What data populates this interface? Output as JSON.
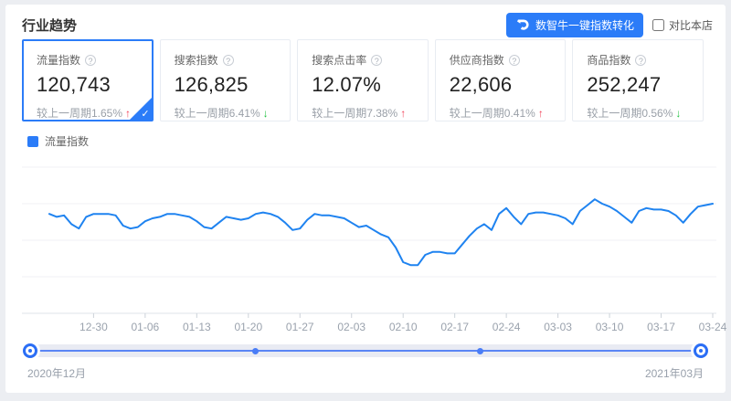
{
  "header": {
    "title": "行业趋势",
    "convert_button_label": "数智牛一键指数转化",
    "compare_checkbox_label": "对比本店"
  },
  "icons": {
    "help_glyph": "?",
    "check_glyph": "✓",
    "up_arrow": "↑",
    "down_arrow": "↓"
  },
  "colors": {
    "accent": "#2b7cf8",
    "line": "#1f83f0",
    "up_red": "#f23c53",
    "down_green": "#23c343"
  },
  "cards": [
    {
      "label": "流量指数",
      "value": "120,743",
      "change_text": "较上一周期1.65%",
      "arrow": "↑",
      "arrow_style": "color:#f23c53",
      "selected": "true"
    },
    {
      "label": "搜索指数",
      "value": "126,825",
      "change_text": "较上一周期6.41%",
      "arrow": "↓",
      "arrow_style": "color:#23c343",
      "selected": "false"
    },
    {
      "label": "搜索点击率",
      "value": "12.07%",
      "change_text": "较上一周期7.38%",
      "arrow": "↑",
      "arrow_style": "color:#f23c53",
      "selected": "false"
    },
    {
      "label": "供应商指数",
      "value": "22,606",
      "change_text": "较上一周期0.41%",
      "arrow": "↑",
      "arrow_style": "color:#f23c53",
      "selected": "false"
    },
    {
      "label": "商品指数",
      "value": "252,247",
      "change_text": "较上一周期0.56%",
      "arrow": "↓",
      "arrow_style": "color:#23c343",
      "selected": "false"
    }
  ],
  "legend": {
    "label": "流量指数",
    "color": "#2b7cf8"
  },
  "slider": {
    "range_start": "2020年12月",
    "range_end": "2021年03月"
  },
  "chart_data": {
    "type": "line",
    "title": "",
    "series_name": "流量指数",
    "start_date": "2020-12-24",
    "end_date": "2021-03-24",
    "frequency": "daily",
    "line_color": "#1f83f0",
    "grid": "horizontal-only",
    "legend_position": "top-left",
    "ylim": [
      60000,
      160000
    ],
    "x_tick_labels": [
      "12-30",
      "01-06",
      "01-13",
      "01-20",
      "01-27",
      "02-03",
      "02-10",
      "02-17",
      "02-24",
      "03-03",
      "03-10",
      "03-17",
      "03-24"
    ],
    "x_tick_indices": [
      6,
      13,
      20,
      27,
      34,
      41,
      48,
      55,
      62,
      69,
      76,
      83,
      90
    ],
    "values": [
      128000,
      126000,
      127000,
      121000,
      118000,
      126000,
      128000,
      128000,
      128000,
      127000,
      120000,
      118000,
      119000,
      123000,
      125000,
      126000,
      128000,
      128000,
      127000,
      126000,
      123000,
      119000,
      118000,
      122000,
      126000,
      125000,
      124000,
      125000,
      128000,
      129000,
      128000,
      126000,
      122000,
      117000,
      118000,
      124000,
      128000,
      127000,
      127000,
      126000,
      125000,
      122000,
      119000,
      120000,
      117000,
      114000,
      112000,
      105000,
      95000,
      93000,
      93000,
      100000,
      102000,
      102000,
      101000,
      101000,
      107000,
      113000,
      118000,
      121000,
      117000,
      128000,
      132000,
      126000,
      121000,
      128000,
      129000,
      129000,
      128000,
      127000,
      125000,
      121000,
      130000,
      134000,
      138000,
      135000,
      133000,
      130000,
      126000,
      122000,
      130000,
      132000,
      131000,
      131000,
      130000,
      127000,
      122000,
      128000,
      133000,
      134000,
      135000
    ]
  }
}
